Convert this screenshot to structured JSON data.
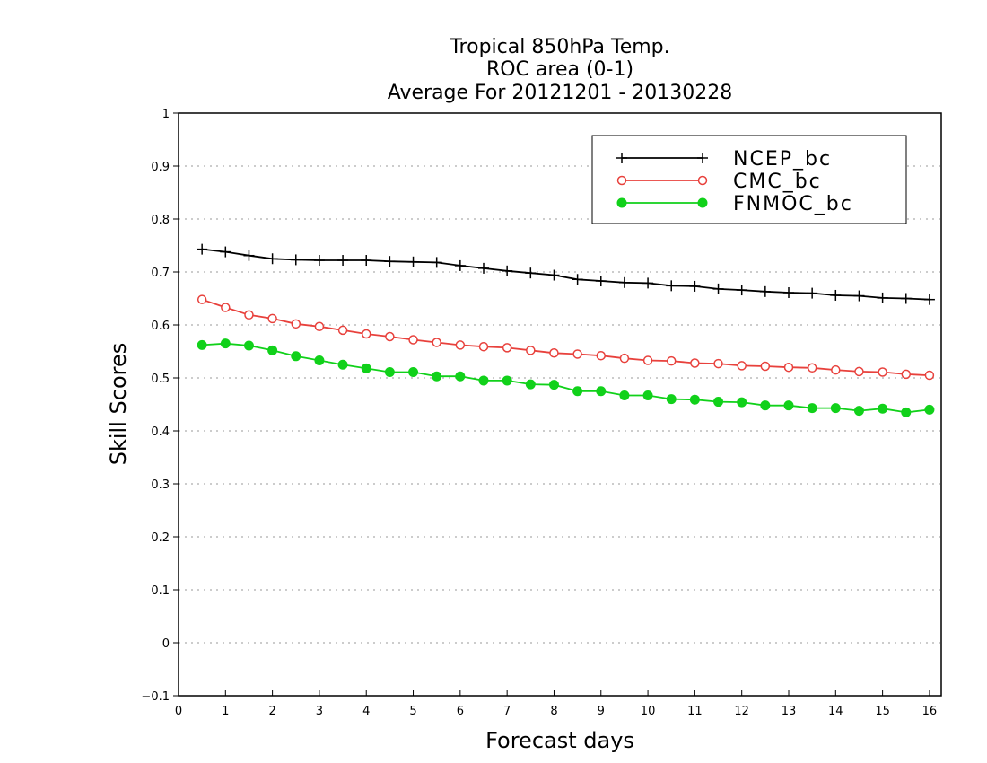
{
  "chart_data": {
    "type": "line",
    "title_lines": [
      "Tropical 850hPa Temp.",
      "ROC area (0-1)",
      "Average For 20121201 - 20130228"
    ],
    "xlabel": "Forecast days",
    "ylabel": "Skill Scores",
    "xlim": [
      0,
      16.25
    ],
    "ylim": [
      -0.1,
      1
    ],
    "x_ticks": [
      0,
      1,
      2,
      3,
      4,
      5,
      6,
      7,
      8,
      9,
      10,
      11,
      12,
      13,
      14,
      15,
      16
    ],
    "y_ticks": [
      -0.1,
      0,
      0.1,
      0.2,
      0.3,
      0.4,
      0.5,
      0.6,
      0.7,
      0.8,
      0.9,
      1
    ],
    "y_tick_labels": [
      "−0.1",
      "0",
      "0.1",
      "0.2",
      "0.3",
      "0.4",
      "0.5",
      "0.6",
      "0.7",
      "0.8",
      "0.9",
      "1"
    ],
    "grid": "horizontal dotted",
    "legend_position": "top-right",
    "x": [
      0.5,
      1.0,
      1.5,
      2.0,
      2.5,
      3.0,
      3.5,
      4.0,
      4.5,
      5.0,
      5.5,
      6.0,
      6.5,
      7.0,
      7.5,
      8.0,
      8.5,
      9.0,
      9.5,
      10.0,
      10.5,
      11.0,
      11.5,
      12.0,
      12.5,
      13.0,
      13.5,
      14.0,
      14.5,
      15.0,
      15.5,
      16.0
    ],
    "series": [
      {
        "name": "NCEP_bc",
        "color": "#000000",
        "marker": "plus",
        "values": [
          0.743,
          0.738,
          0.731,
          0.725,
          0.723,
          0.722,
          0.722,
          0.722,
          0.72,
          0.719,
          0.718,
          0.712,
          0.707,
          0.702,
          0.698,
          0.694,
          0.686,
          0.683,
          0.68,
          0.679,
          0.674,
          0.673,
          0.668,
          0.666,
          0.663,
          0.661,
          0.66,
          0.656,
          0.655,
          0.651,
          0.65,
          0.648
        ]
      },
      {
        "name": "CMC_bc",
        "color": "#e8413c",
        "marker": "open-circle",
        "values": [
          0.648,
          0.633,
          0.619,
          0.612,
          0.602,
          0.597,
          0.59,
          0.583,
          0.578,
          0.572,
          0.567,
          0.562,
          0.559,
          0.557,
          0.552,
          0.547,
          0.545,
          0.542,
          0.537,
          0.533,
          0.532,
          0.528,
          0.527,
          0.523,
          0.522,
          0.52,
          0.519,
          0.515,
          0.512,
          0.511,
          0.507,
          0.505
        ]
      },
      {
        "name": "FNMOC_bc",
        "color": "#11d11a",
        "marker": "filled-circle",
        "values": [
          0.562,
          0.565,
          0.561,
          0.552,
          0.541,
          0.533,
          0.525,
          0.518,
          0.511,
          0.511,
          0.503,
          0.503,
          0.495,
          0.495,
          0.488,
          0.487,
          0.475,
          0.475,
          0.467,
          0.467,
          0.46,
          0.459,
          0.455,
          0.454,
          0.448,
          0.448,
          0.443,
          0.443,
          0.438,
          0.442,
          0.435,
          0.44
        ]
      }
    ]
  }
}
